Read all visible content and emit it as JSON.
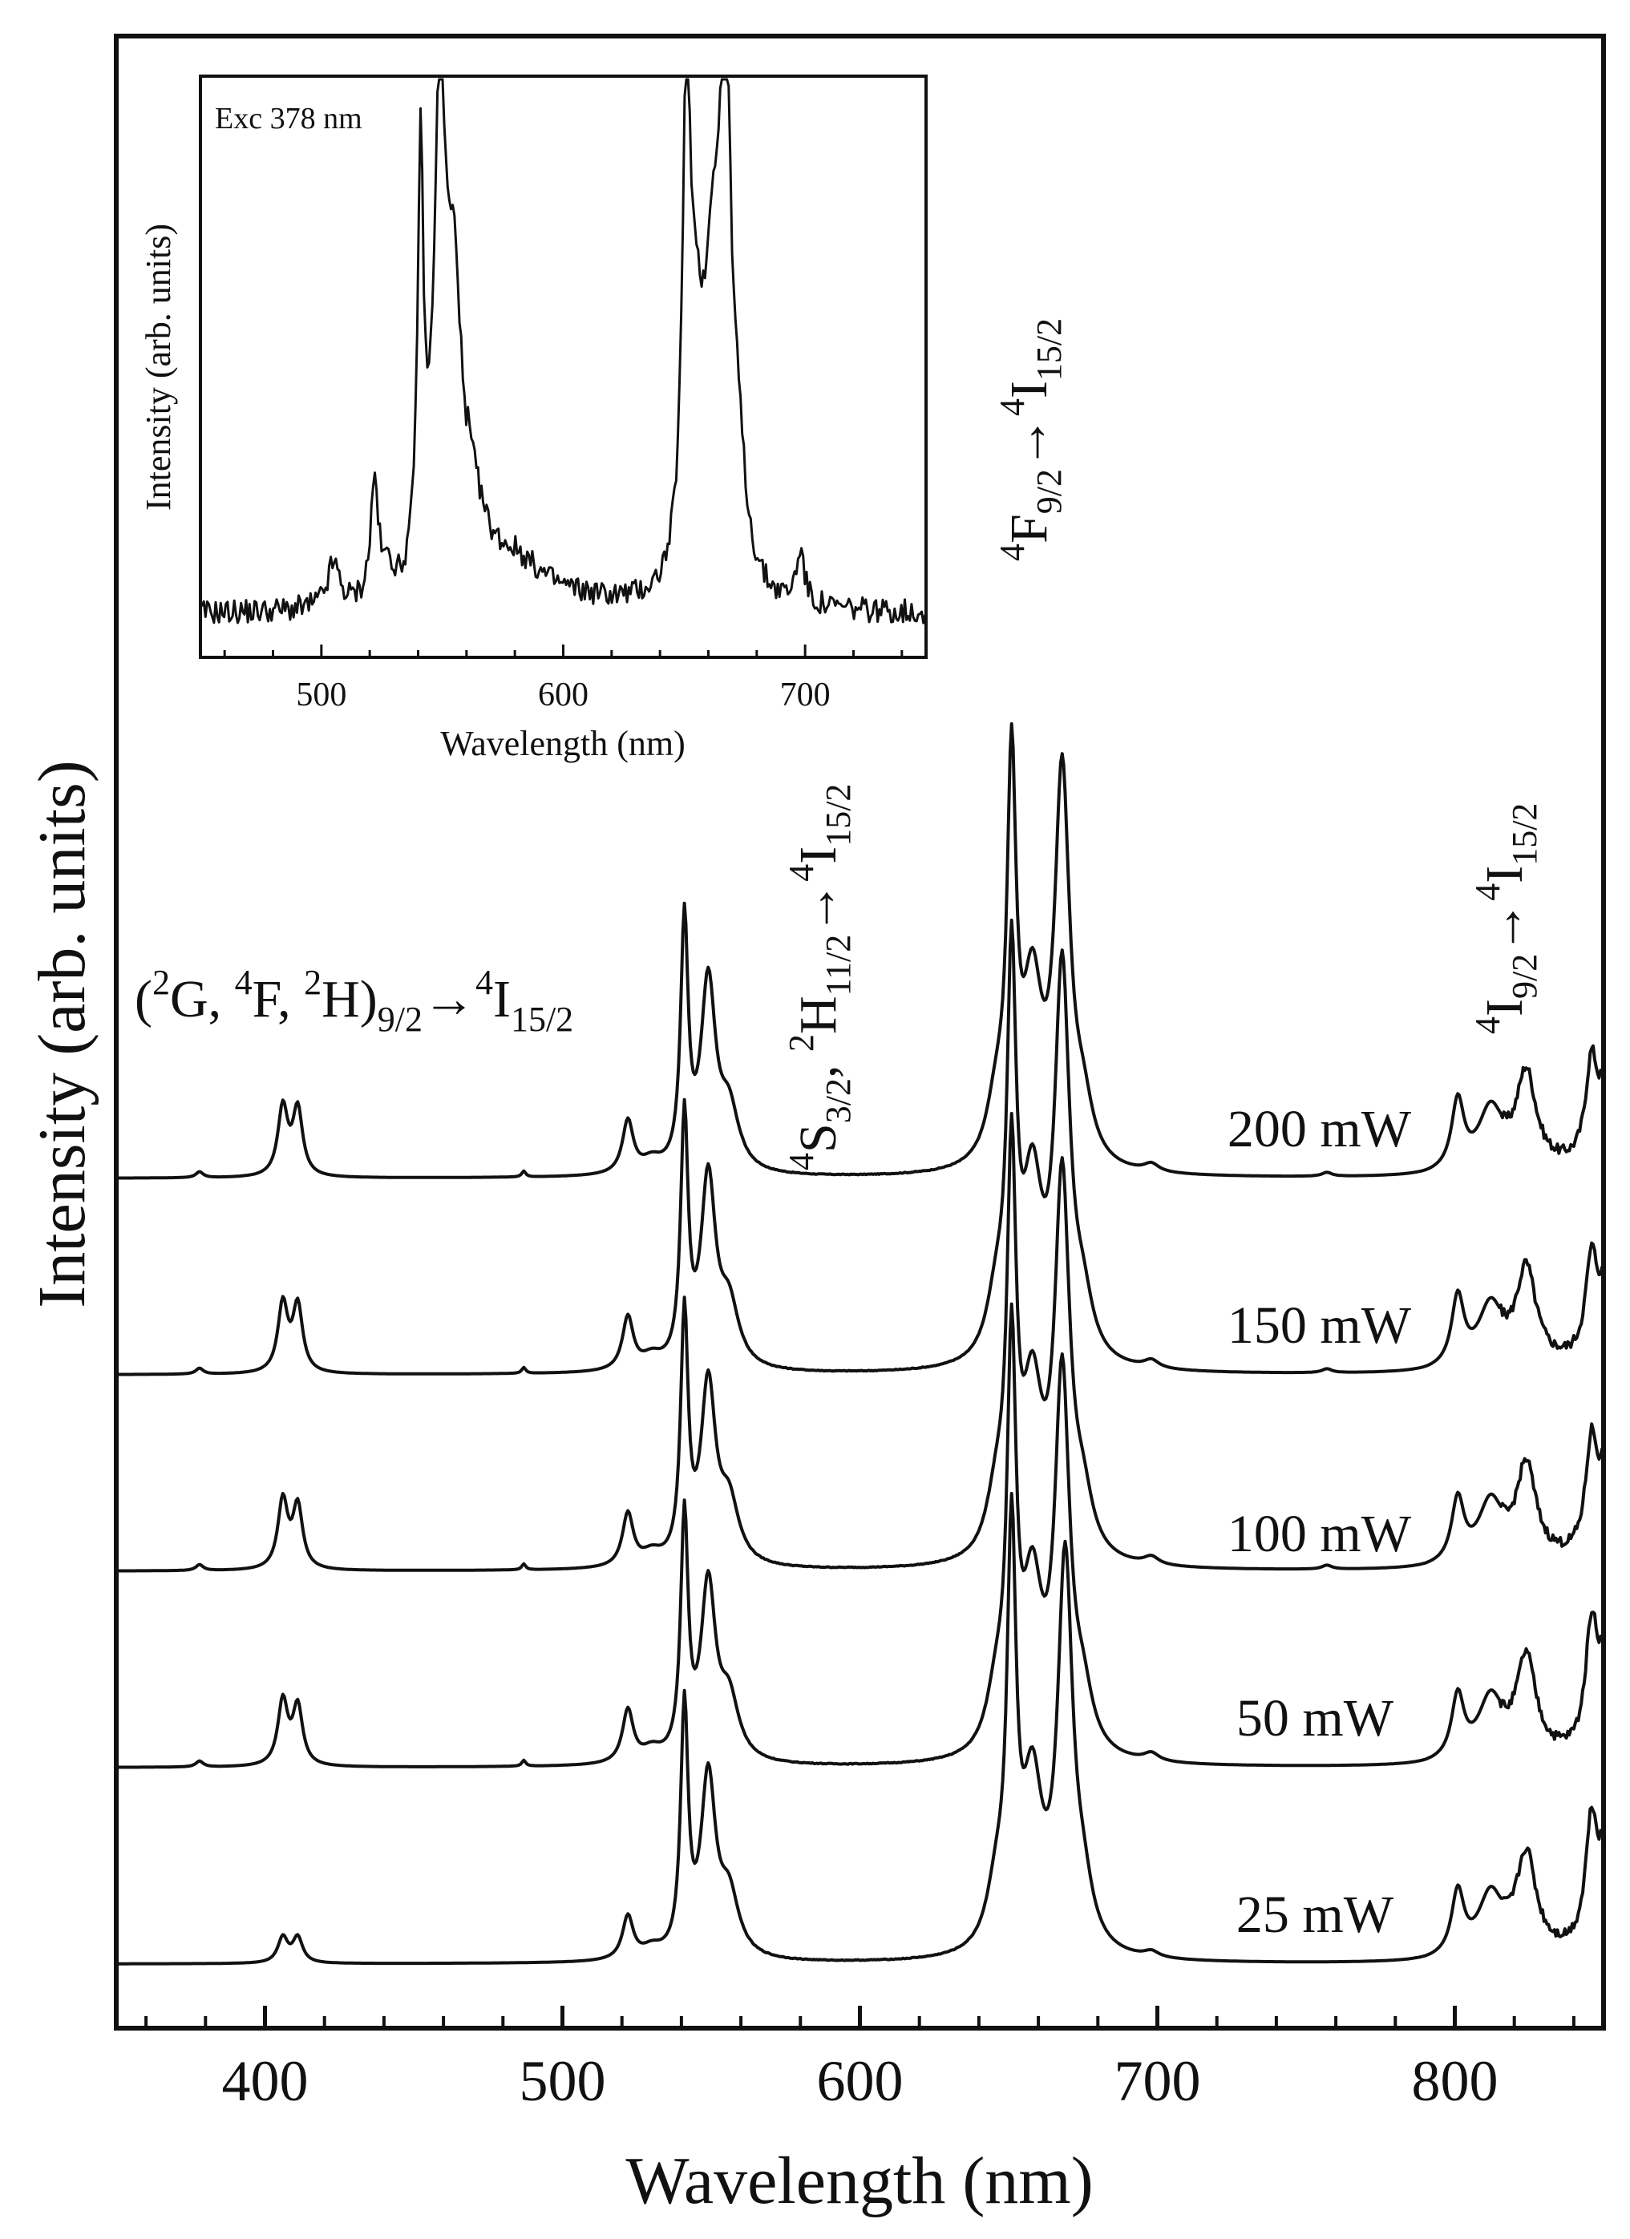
{
  "chart_data": {
    "type": "line",
    "xlabel": "Wavelength (nm)",
    "ylabel": "Intensity (arb. units)",
    "xlim": [
      350,
      850
    ],
    "x_ticks": [
      400,
      500,
      600,
      700,
      800
    ],
    "x_minor_step": 20,
    "y_ticks": "none (arbitrary units)",
    "layout": "vertically offset stacked spectra",
    "series": [
      {
        "name": "200 mW",
        "offset": 4.0,
        "peaks": [
          {
            "x": 378,
            "h": 0.03,
            "w": 1.5
          },
          {
            "x": 406,
            "h": 0.35,
            "w": 2
          },
          {
            "x": 411,
            "h": 0.34,
            "w": 2
          },
          {
            "x": 487,
            "h": 0.03,
            "w": 0.8
          },
          {
            "x": 522,
            "h": 0.27,
            "w": 2.2
          },
          {
            "x": 530,
            "h": 0.06,
            "w": 4
          },
          {
            "x": 541,
            "h": 1.25,
            "w": 1.5
          },
          {
            "x": 549,
            "h": 0.95,
            "w": 3
          },
          {
            "x": 556,
            "h": 0.3,
            "w": 4
          },
          {
            "x": 651,
            "h": 1.92,
            "w": 1.8
          },
          {
            "x": 646,
            "h": 0.3,
            "w": 4
          },
          {
            "x": 658,
            "h": 0.85,
            "w": 4
          },
          {
            "x": 668,
            "h": 1.95,
            "w": 3
          },
          {
            "x": 675,
            "h": 0.25,
            "w": 4
          },
          {
            "x": 698,
            "h": 0.04,
            "w": 3
          },
          {
            "x": 757,
            "h": 0.02,
            "w": 2
          },
          {
            "x": 801,
            "h": 0.35,
            "w": 2.5
          },
          {
            "x": 812,
            "h": 0.3,
            "w": 5
          },
          {
            "x": 824,
            "h": 0.48,
            "w": 4
          },
          {
            "x": 846,
            "h": 0.52,
            "w": 2.5
          },
          {
            "x": 850,
            "h": 0.3,
            "w": 2
          }
        ]
      },
      {
        "name": "150 mW",
        "offset": 3.0,
        "peaks": [
          {
            "x": 378,
            "h": 0.03,
            "w": 1.5
          },
          {
            "x": 406,
            "h": 0.35,
            "w": 2
          },
          {
            "x": 411,
            "h": 0.34,
            "w": 2
          },
          {
            "x": 487,
            "h": 0.03,
            "w": 0.8
          },
          {
            "x": 522,
            "h": 0.27,
            "w": 2.2
          },
          {
            "x": 530,
            "h": 0.06,
            "w": 4
          },
          {
            "x": 541,
            "h": 1.25,
            "w": 1.5
          },
          {
            "x": 549,
            "h": 0.95,
            "w": 3
          },
          {
            "x": 556,
            "h": 0.3,
            "w": 4
          },
          {
            "x": 651,
            "h": 1.92,
            "w": 1.8
          },
          {
            "x": 646,
            "h": 0.3,
            "w": 4
          },
          {
            "x": 658,
            "h": 0.85,
            "w": 4
          },
          {
            "x": 668,
            "h": 1.95,
            "w": 3
          },
          {
            "x": 675,
            "h": 0.25,
            "w": 4
          },
          {
            "x": 698,
            "h": 0.04,
            "w": 3
          },
          {
            "x": 757,
            "h": 0.02,
            "w": 2
          },
          {
            "x": 801,
            "h": 0.35,
            "w": 2.5
          },
          {
            "x": 812,
            "h": 0.3,
            "w": 5
          },
          {
            "x": 824,
            "h": 0.48,
            "w": 4
          },
          {
            "x": 846,
            "h": 0.52,
            "w": 2.5
          },
          {
            "x": 850,
            "h": 0.3,
            "w": 2
          }
        ]
      },
      {
        "name": "100 mW",
        "offset": 2.0,
        "peaks": [
          {
            "x": 378,
            "h": 0.03,
            "w": 1.5
          },
          {
            "x": 406,
            "h": 0.35,
            "w": 2
          },
          {
            "x": 411,
            "h": 0.32,
            "w": 2
          },
          {
            "x": 487,
            "h": 0.03,
            "w": 0.8
          },
          {
            "x": 522,
            "h": 0.27,
            "w": 2.2
          },
          {
            "x": 530,
            "h": 0.06,
            "w": 4
          },
          {
            "x": 541,
            "h": 1.25,
            "w": 1.5
          },
          {
            "x": 549,
            "h": 0.9,
            "w": 3
          },
          {
            "x": 556,
            "h": 0.3,
            "w": 4
          },
          {
            "x": 651,
            "h": 1.95,
            "w": 1.8
          },
          {
            "x": 646,
            "h": 0.3,
            "w": 4
          },
          {
            "x": 658,
            "h": 0.8,
            "w": 4
          },
          {
            "x": 668,
            "h": 1.9,
            "w": 3
          },
          {
            "x": 675,
            "h": 0.25,
            "w": 4
          },
          {
            "x": 698,
            "h": 0.04,
            "w": 3
          },
          {
            "x": 757,
            "h": 0.02,
            "w": 2
          },
          {
            "x": 801,
            "h": 0.32,
            "w": 2.5
          },
          {
            "x": 812,
            "h": 0.3,
            "w": 5
          },
          {
            "x": 824,
            "h": 0.48,
            "w": 4
          },
          {
            "x": 846,
            "h": 0.58,
            "w": 2.5
          },
          {
            "x": 850,
            "h": 0.35,
            "w": 2
          }
        ]
      },
      {
        "name": "50 mW",
        "offset": 1.0,
        "peaks": [
          {
            "x": 378,
            "h": 0.03,
            "w": 1.5
          },
          {
            "x": 406,
            "h": 0.33,
            "w": 2
          },
          {
            "x": 411,
            "h": 0.3,
            "w": 2
          },
          {
            "x": 487,
            "h": 0.03,
            "w": 0.8
          },
          {
            "x": 522,
            "h": 0.27,
            "w": 2.2
          },
          {
            "x": 530,
            "h": 0.06,
            "w": 4
          },
          {
            "x": 541,
            "h": 1.22,
            "w": 1.5
          },
          {
            "x": 549,
            "h": 0.88,
            "w": 3
          },
          {
            "x": 556,
            "h": 0.3,
            "w": 4
          },
          {
            "x": 651,
            "h": 1.98,
            "w": 1.8
          },
          {
            "x": 646,
            "h": 0.3,
            "w": 4
          },
          {
            "x": 658,
            "h": 0.8,
            "w": 4
          },
          {
            "x": 668,
            "h": 1.9,
            "w": 3
          },
          {
            "x": 675,
            "h": 0.25,
            "w": 4
          },
          {
            "x": 698,
            "h": 0.04,
            "w": 3
          },
          {
            "x": 801,
            "h": 0.32,
            "w": 2.5
          },
          {
            "x": 812,
            "h": 0.3,
            "w": 5
          },
          {
            "x": 824,
            "h": 0.5,
            "w": 4
          },
          {
            "x": 846,
            "h": 0.65,
            "w": 2.5
          },
          {
            "x": 850,
            "h": 0.4,
            "w": 2
          }
        ]
      },
      {
        "name": "25 mW",
        "offset": 0.0,
        "peaks": [
          {
            "x": 406,
            "h": 0.13,
            "w": 2
          },
          {
            "x": 411,
            "h": 0.13,
            "w": 2
          },
          {
            "x": 522,
            "h": 0.22,
            "w": 2.2
          },
          {
            "x": 530,
            "h": 0.05,
            "w": 4
          },
          {
            "x": 541,
            "h": 1.25,
            "w": 1.5
          },
          {
            "x": 549,
            "h": 0.9,
            "w": 3
          },
          {
            "x": 556,
            "h": 0.3,
            "w": 4
          },
          {
            "x": 651,
            "h": 2.02,
            "w": 1.8
          },
          {
            "x": 646,
            "h": 0.3,
            "w": 4
          },
          {
            "x": 658,
            "h": 0.8,
            "w": 4
          },
          {
            "x": 669,
            "h": 1.95,
            "w": 3
          },
          {
            "x": 675,
            "h": 0.25,
            "w": 4
          },
          {
            "x": 698,
            "h": 0.03,
            "w": 3
          },
          {
            "x": 801,
            "h": 0.32,
            "w": 2.5
          },
          {
            "x": 812,
            "h": 0.3,
            "w": 5
          },
          {
            "x": 824,
            "h": 0.5,
            "w": 4
          },
          {
            "x": 846,
            "h": 0.65,
            "w": 2.5
          },
          {
            "x": 850,
            "h": 0.4,
            "w": 2
          }
        ]
      }
    ],
    "annotations": [
      {
        "id": "t1",
        "text": "(²G, ⁴F, ²H)9/2→⁴I15/2",
        "x": 411
      },
      {
        "id": "t2",
        "text": "⁴S3/2, ²H11/2→⁴I15/2",
        "x": 541
      },
      {
        "id": "t3",
        "text": "⁴F9/2→⁴I15/2",
        "x": 660
      },
      {
        "id": "t4",
        "text": "⁴I9/2→⁴I15/2",
        "x": 820
      }
    ],
    "inset": {
      "type": "line",
      "tag": "Exc 378 nm",
      "xlabel": "Wavelength (nm)",
      "ylabel": "Intensity (arb. units)",
      "xlim": [
        450,
        750
      ],
      "x_ticks": [
        500,
        600,
        700
      ],
      "baseline": 0.05,
      "peaks": [
        {
          "x": 505,
          "h": 0.08,
          "w": 3
        },
        {
          "x": 522,
          "h": 0.22,
          "w": 2
        },
        {
          "x": 528,
          "h": 0.05,
          "w": 2
        },
        {
          "x": 541,
          "h": 0.75,
          "w": 1.5
        },
        {
          "x": 549,
          "h": 0.85,
          "w": 3
        },
        {
          "x": 555,
          "h": 0.5,
          "w": 4
        },
        {
          "x": 563,
          "h": 0.08,
          "w": 6
        },
        {
          "x": 580,
          "h": 0.05,
          "w": 12
        },
        {
          "x": 651,
          "h": 0.82,
          "w": 2
        },
        {
          "x": 655,
          "h": 0.35,
          "w": 4
        },
        {
          "x": 662,
          "h": 0.5,
          "w": 4
        },
        {
          "x": 667,
          "h": 0.88,
          "w": 2.5
        },
        {
          "x": 672,
          "h": 0.2,
          "w": 4
        },
        {
          "x": 698,
          "h": 0.1,
          "w": 2
        }
      ]
    }
  },
  "labels": {
    "p200": "200 mW",
    "p150": "150 mW",
    "p100": "100 mW",
    "p50": "50 mW",
    "p25": "25 mW",
    "t1_a": "(",
    "t1_s1": "2",
    "t1_b": "G, ",
    "t1_s2": "4",
    "t1_c": "F, ",
    "t1_s3": "2",
    "t1_d": "H)",
    "t1_sub": "9/2",
    "t1_arrow": "→",
    "t1_s4": "4",
    "t1_e": "I",
    "t1_sub2": "15/2",
    "t2_s1": "4",
    "t2_a": "S",
    "t2_sub1": "3/2",
    "t2_b": ", ",
    "t2_s2": "2",
    "t2_c": "H",
    "t2_sub2": "11/2",
    "t2_arrow": "→",
    "t2_s3": "4",
    "t2_d": "I",
    "t2_sub3": "15/2",
    "t3_s1": "4",
    "t3_a": "F",
    "t3_sub1": "9/2",
    "t3_arrow": "→",
    "t3_s2": "4",
    "t3_b": "I",
    "t3_sub2": "15/2",
    "t4_s1": "4",
    "t4_a": "I",
    "t4_sub1": "9/2",
    "t4_arrow": "→",
    "t4_s2": "4",
    "t4_b": "I",
    "t4_sub2": "15/2"
  }
}
